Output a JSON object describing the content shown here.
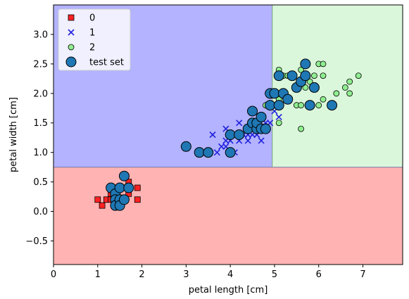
{
  "chart_data": {
    "type": "scatter",
    "title": "",
    "xlabel": "petal length [cm]",
    "ylabel": "petal width [cm]",
    "xlim": [
      0,
      7.9
    ],
    "ylim": [
      -0.9,
      3.5
    ],
    "xticks": [
      0,
      1,
      2,
      3,
      4,
      5,
      6,
      7
    ],
    "yticks": [
      -0.5,
      0.0,
      0.5,
      1.0,
      1.5,
      2.0,
      2.5,
      3.0
    ],
    "grid": false,
    "legend_position": "top-left",
    "decision_regions": [
      {
        "class": "0",
        "x": [
          0,
          7.9
        ],
        "y": [
          -0.9,
          0.75
        ],
        "color": "#ffb3b3"
      },
      {
        "class": "1",
        "x": [
          0,
          4.95
        ],
        "y": [
          0.75,
          3.5
        ],
        "color": "#b3b3ff"
      },
      {
        "class": "2",
        "x": [
          4.95,
          7.9
        ],
        "y": [
          0.75,
          3.5
        ],
        "color": "#dbf7db"
      }
    ],
    "series": [
      {
        "name": "0",
        "marker": "square",
        "color": "#ff2222",
        "points": [
          [
            1.0,
            0.2
          ],
          [
            1.1,
            0.1
          ],
          [
            1.2,
            0.2
          ],
          [
            1.3,
            0.2
          ],
          [
            1.3,
            0.3
          ],
          [
            1.4,
            0.2
          ],
          [
            1.4,
            0.3
          ],
          [
            1.5,
            0.1
          ],
          [
            1.5,
            0.2
          ],
          [
            1.5,
            0.4
          ],
          [
            1.6,
            0.2
          ],
          [
            1.6,
            0.4
          ],
          [
            1.7,
            0.3
          ],
          [
            1.7,
            0.5
          ],
          [
            1.9,
            0.2
          ],
          [
            1.9,
            0.4
          ]
        ]
      },
      {
        "name": "1",
        "marker": "x",
        "color": "#2222dd",
        "points": [
          [
            3.5,
            1.0
          ],
          [
            3.6,
            1.3
          ],
          [
            3.7,
            1.0
          ],
          [
            3.8,
            1.1
          ],
          [
            3.9,
            1.1
          ],
          [
            3.9,
            1.2
          ],
          [
            3.9,
            1.4
          ],
          [
            4.0,
            1.2
          ],
          [
            4.1,
            1.0
          ],
          [
            4.1,
            1.3
          ],
          [
            4.2,
            1.2
          ],
          [
            4.2,
            1.5
          ],
          [
            4.3,
            1.3
          ],
          [
            4.4,
            1.2
          ],
          [
            4.4,
            1.3
          ],
          [
            4.5,
            1.3
          ],
          [
            4.6,
            1.3
          ],
          [
            4.7,
            1.2
          ],
          [
            4.7,
            1.4
          ],
          [
            4.8,
            1.5
          ],
          [
            4.9,
            1.5
          ],
          [
            5.0,
            1.7
          ],
          [
            5.1,
            1.6
          ]
        ]
      },
      {
        "name": "2",
        "marker": "circle",
        "color": "#90ee90",
        "points": [
          [
            4.8,
            1.8
          ],
          [
            4.9,
            1.8
          ],
          [
            5.0,
            2.0
          ],
          [
            5.1,
            1.5
          ],
          [
            5.1,
            1.9
          ],
          [
            5.1,
            2.4
          ],
          [
            5.2,
            2.3
          ],
          [
            5.3,
            2.3
          ],
          [
            5.4,
            2.3
          ],
          [
            5.5,
            1.8
          ],
          [
            5.5,
            2.1
          ],
          [
            5.6,
            1.4
          ],
          [
            5.6,
            1.8
          ],
          [
            5.6,
            2.4
          ],
          [
            5.7,
            2.1
          ],
          [
            5.7,
            2.3
          ],
          [
            5.8,
            1.8
          ],
          [
            5.8,
            2.2
          ],
          [
            5.9,
            2.1
          ],
          [
            5.9,
            2.3
          ],
          [
            6.0,
            1.8
          ],
          [
            6.0,
            2.5
          ],
          [
            6.1,
            1.9
          ],
          [
            6.1,
            2.3
          ],
          [
            6.1,
            2.5
          ],
          [
            6.4,
            2.0
          ],
          [
            6.6,
            2.1
          ],
          [
            6.7,
            2.0
          ],
          [
            6.7,
            2.2
          ],
          [
            6.9,
            2.3
          ]
        ]
      },
      {
        "name": "test set",
        "marker": "circle-large",
        "color": "#1f77b4",
        "points": [
          [
            1.3,
            0.4
          ],
          [
            1.4,
            0.3
          ],
          [
            1.4,
            0.2
          ],
          [
            1.4,
            0.1
          ],
          [
            1.5,
            0.4
          ],
          [
            1.5,
            0.2
          ],
          [
            1.5,
            0.1
          ],
          [
            1.6,
            0.6
          ],
          [
            1.6,
            0.2
          ],
          [
            1.7,
            0.4
          ],
          [
            3.0,
            1.1
          ],
          [
            3.3,
            1.0
          ],
          [
            3.5,
            1.0
          ],
          [
            4.0,
            1.0
          ],
          [
            4.0,
            1.3
          ],
          [
            4.2,
            1.3
          ],
          [
            4.4,
            1.4
          ],
          [
            4.5,
            1.7
          ],
          [
            4.5,
            1.5
          ],
          [
            4.6,
            1.4
          ],
          [
            4.6,
            1.5
          ],
          [
            4.7,
            1.6
          ],
          [
            4.7,
            1.4
          ],
          [
            4.8,
            1.4
          ],
          [
            4.9,
            1.8
          ],
          [
            4.9,
            2.0
          ],
          [
            5.0,
            2.0
          ],
          [
            5.1,
            1.8
          ],
          [
            5.1,
            2.3
          ],
          [
            5.2,
            2.0
          ],
          [
            5.3,
            1.9
          ],
          [
            5.4,
            2.3
          ],
          [
            5.5,
            2.1
          ],
          [
            5.6,
            2.2
          ],
          [
            5.7,
            2.3
          ],
          [
            5.7,
            2.5
          ],
          [
            5.8,
            1.8
          ],
          [
            5.9,
            2.1
          ],
          [
            6.3,
            1.8
          ]
        ]
      }
    ]
  }
}
